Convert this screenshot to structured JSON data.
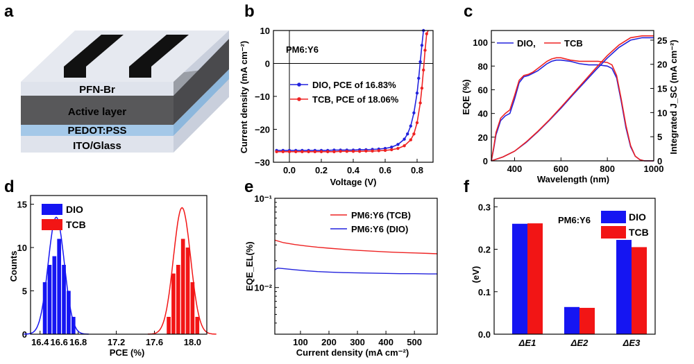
{
  "panel_labels": {
    "a": "a",
    "b": "b",
    "c": "c",
    "d": "d",
    "e": "e",
    "f": "f"
  },
  "device_stack": {
    "layers": [
      "PFN-Br",
      "Active layer",
      "PEDOT:PSS",
      "ITO/Glass"
    ],
    "colors": {
      "pfn": "#dfe3ec",
      "active": "#58585a",
      "pedot": "#a4c8e8",
      "ito": "#dfe3ec",
      "electrode": "#111111"
    }
  },
  "chart_data": [
    {
      "panel": "b",
      "type": "line",
      "title": "PM6:Y6",
      "xlabel": "Voltage (V)",
      "ylabel": "Current density (mA cm⁻²)",
      "xlim": [
        -0.1,
        0.9
      ],
      "ylim": [
        -30,
        10
      ],
      "xticks": [
        "0.0",
        "0.2",
        "0.4",
        "0.6",
        "0.8"
      ],
      "yticks": [
        "10",
        "0",
        "−10",
        "−20",
        "−30"
      ],
      "series": [
        {
          "name": "DIO, PCE of 16.83%",
          "color": "#2222dd",
          "x": [
            -0.08,
            -0.04,
            0,
            0.04,
            0.08,
            0.12,
            0.16,
            0.2,
            0.24,
            0.28,
            0.32,
            0.36,
            0.4,
            0.44,
            0.48,
            0.52,
            0.56,
            0.6,
            0.64,
            0.68,
            0.72,
            0.74,
            0.76,
            0.78,
            0.8,
            0.81,
            0.82,
            0.83,
            0.84,
            0.85
          ],
          "y": [
            -26.4,
            -26.4,
            -26.4,
            -26.4,
            -26.4,
            -26.4,
            -26.4,
            -26.4,
            -26.4,
            -26.3,
            -26.3,
            -26.3,
            -26.3,
            -26.2,
            -26.2,
            -26.1,
            -26.0,
            -25.8,
            -25.4,
            -24.6,
            -23.0,
            -21.4,
            -19.0,
            -15.0,
            -9.0,
            -4.5,
            0.5,
            5.5,
            10.0,
            14.0
          ]
        },
        {
          "name": "TCB,  PCE of 18.06%",
          "color": "#ee2222",
          "x": [
            -0.08,
            -0.04,
            0,
            0.04,
            0.08,
            0.12,
            0.16,
            0.2,
            0.24,
            0.28,
            0.32,
            0.36,
            0.4,
            0.44,
            0.48,
            0.52,
            0.56,
            0.6,
            0.64,
            0.68,
            0.72,
            0.76,
            0.78,
            0.8,
            0.82,
            0.83,
            0.84,
            0.85,
            0.86,
            0.87
          ],
          "y": [
            -26.8,
            -26.8,
            -26.8,
            -26.8,
            -26.8,
            -26.8,
            -26.8,
            -26.8,
            -26.8,
            -26.8,
            -26.7,
            -26.7,
            -26.7,
            -26.7,
            -26.6,
            -26.6,
            -26.5,
            -26.4,
            -26.2,
            -25.8,
            -25.0,
            -23.2,
            -21.4,
            -18.0,
            -12.0,
            -7.5,
            -2.0,
            4.0,
            9.0,
            13.0
          ]
        }
      ]
    },
    {
      "panel": "c",
      "type": "line",
      "xlabel": "Wavelength (nm)",
      "ylabel": "EQE (%)",
      "y2label": "Integrated J_SC (mA cm⁻²)",
      "xlim": [
        300,
        1000
      ],
      "ylim": [
        0,
        110
      ],
      "y2lim": [
        0,
        27
      ],
      "xticks": [
        "400",
        "600",
        "800",
        "1000"
      ],
      "yticks": [
        "0",
        "20",
        "40",
        "60",
        "80",
        "100"
      ],
      "y2ticks": [
        "0",
        "5",
        "10",
        "15",
        "20",
        "25"
      ],
      "legend": [
        "DIO,",
        "TCB"
      ],
      "series": [
        {
          "name": "DIO,",
          "color": "#2222dd",
          "x": [
            300,
            310,
            320,
            340,
            360,
            380,
            400,
            420,
            440,
            460,
            480,
            500,
            520,
            540,
            560,
            580,
            600,
            640,
            680,
            720,
            760,
            800,
            820,
            840,
            860,
            880,
            900,
            920,
            940,
            960,
            1000
          ],
          "y": [
            0,
            10,
            22,
            34,
            38,
            40,
            52,
            66,
            71,
            72,
            74,
            76,
            79,
            82,
            84,
            85,
            85,
            84,
            82,
            81,
            81,
            80,
            78,
            70,
            50,
            28,
            12,
            4,
            1,
            0,
            0
          ]
        },
        {
          "name": "TCB",
          "color": "#ee2222",
          "x": [
            300,
            310,
            320,
            340,
            360,
            380,
            400,
            420,
            440,
            460,
            480,
            500,
            520,
            540,
            560,
            580,
            600,
            640,
            680,
            720,
            760,
            800,
            820,
            840,
            860,
            880,
            900,
            920,
            940,
            960,
            1000
          ],
          "y": [
            0,
            11,
            24,
            36,
            40,
            43,
            55,
            68,
            72,
            73,
            75,
            78,
            81,
            84,
            86,
            87,
            87,
            85,
            84,
            84,
            84,
            83,
            81,
            72,
            52,
            30,
            13,
            4,
            1,
            0,
            0
          ]
        },
        {
          "name": "DIO integrated",
          "color": "#2222dd",
          "axis": "right",
          "x": [
            300,
            350,
            400,
            450,
            500,
            550,
            600,
            650,
            700,
            750,
            800,
            850,
            900,
            950,
            1000
          ],
          "y": [
            0,
            0.8,
            2,
            3.8,
            6,
            8.4,
            10.9,
            13.6,
            16.2,
            18.8,
            21.3,
            23.5,
            25,
            25.5,
            25.5
          ]
        },
        {
          "name": "TCB integrated",
          "color": "#ee2222",
          "axis": "right",
          "x": [
            300,
            350,
            400,
            450,
            500,
            550,
            600,
            650,
            700,
            750,
            800,
            850,
            900,
            950,
            1000
          ],
          "y": [
            0,
            0.8,
            2,
            3.9,
            6.1,
            8.5,
            11.1,
            13.8,
            16.5,
            19.2,
            21.8,
            24.0,
            25.5,
            25.9,
            25.9
          ]
        }
      ]
    },
    {
      "panel": "d",
      "type": "bar",
      "xlabel": "PCE (%)",
      "ylabel": "Counts",
      "xlim": [
        16.3,
        18.15
      ],
      "ylim": [
        0,
        16
      ],
      "xticks": [
        "16.4",
        "16.6",
        "16.8",
        "17.2",
        "17.6",
        "18.0"
      ],
      "yticks": [
        "0",
        "5",
        "10",
        "15"
      ],
      "series": [
        {
          "name": "DIO",
          "color": "#1515f2",
          "x": [
            16.45,
            16.5,
            16.55,
            16.6,
            16.65,
            16.7,
            16.75
          ],
          "values": [
            6,
            8,
            9,
            11,
            8,
            5,
            2
          ],
          "fit_mean": 16.57,
          "fit_sd": 0.085,
          "fit_peak": 13.5
        },
        {
          "name": "TCB",
          "color": "#f21515",
          "x": [
            17.75,
            17.8,
            17.85,
            17.9,
            17.95,
            18.0,
            18.05
          ],
          "values": [
            2,
            7,
            8,
            11,
            10,
            6,
            2
          ],
          "fit_mean": 17.89,
          "fit_sd": 0.09,
          "fit_peak": 14.6
        }
      ]
    },
    {
      "panel": "e",
      "type": "line",
      "xlabel": "Current density (mA cm⁻²)",
      "ylabel": "EQE_EL(%)",
      "yscale": "log",
      "xlim": [
        10,
        580
      ],
      "ylim": [
        0.003,
        0.1
      ],
      "xticks": [
        "100",
        "200",
        "300",
        "400",
        "500"
      ],
      "yticks": [
        "10⁻¹",
        "10⁻²"
      ],
      "series": [
        {
          "name": "PM6:Y6 (TCB)",
          "color": "#ee2222",
          "x": [
            10,
            40,
            80,
            120,
            160,
            200,
            250,
            300,
            350,
            400,
            450,
            500,
            550,
            580
          ],
          "y": [
            0.034,
            0.0318,
            0.0303,
            0.0292,
            0.0283,
            0.0276,
            0.0268,
            0.0261,
            0.0256,
            0.0251,
            0.0247,
            0.0244,
            0.0241,
            0.0239
          ]
        },
        {
          "name": "PM6:Y6 (DIO)",
          "color": "#2222dd",
          "x": [
            10,
            20,
            40,
            80,
            120,
            160,
            200,
            250,
            300,
            350,
            400,
            450,
            500,
            550,
            580
          ],
          "y": [
            0.0158,
            0.0165,
            0.0163,
            0.0158,
            0.0154,
            0.0151,
            0.0149,
            0.0147,
            0.0146,
            0.0145,
            0.0144,
            0.0143,
            0.0143,
            0.0142,
            0.0142
          ]
        }
      ]
    },
    {
      "panel": "f",
      "type": "bar",
      "title": "PM6:Y6",
      "ylabel": "(eV)",
      "ylim": [
        0,
        0.32
      ],
      "yticks": [
        "0.0",
        "0.1",
        "0.2",
        "0.3"
      ],
      "categories": [
        "ΔE1",
        "ΔE2",
        "ΔE3"
      ],
      "series": [
        {
          "name": "DIO",
          "color": "#1515f2",
          "values": [
            0.26,
            0.064,
            0.222
          ]
        },
        {
          "name": "TCB",
          "color": "#f21515",
          "values": [
            0.261,
            0.062,
            0.205
          ]
        }
      ]
    }
  ]
}
